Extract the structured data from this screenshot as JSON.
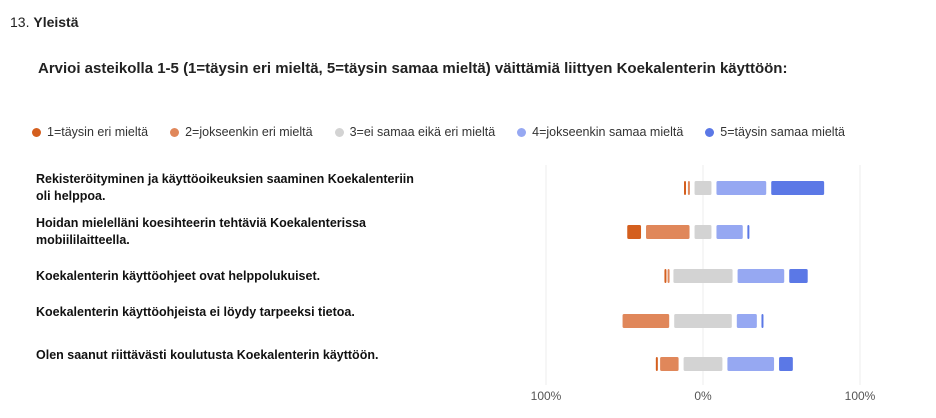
{
  "question": {
    "number": "13.",
    "title": "Yleistä"
  },
  "subtitle": "Arvioi asteikolla 1-5 (1=täysin eri mieltä, 5=täysin samaa mieltä) väittämiä liittyen Koekalenterin käyttöön:",
  "colors": [
    "#d45f1e",
    "#e0875a",
    "#d3d3d3",
    "#96a8f2",
    "#5b78e6"
  ],
  "chart_data": {
    "type": "bar",
    "subtype": "diverging-stacked",
    "legend": [
      "1=täysin eri mieltä",
      "2=jokseenkin eri mieltä",
      "3=ei samaa eikä eri mieltä",
      "4=jokseenkin samaa mieltä",
      "5=täysin samaa mieltä"
    ],
    "legend_position": "top",
    "categories": [
      "Rekisteröityminen ja käyttöoikeuksien saaminen Koekalenteriin oli helppoa.",
      "Hoidan mielelläni koesihteerin tehtäviä Koekalenterissa mobiililaitteella.",
      "Koekalenterin käyttöohjeet ovat helppolukuiset.",
      "Koekalenterin käyttöohjeista ei löydy tarpeeksi tietoa.",
      "Olen saanut riittävästi koulutusta Koekalenterin käyttöön."
    ],
    "series": [
      {
        "name": "1=täysin eri mieltä",
        "values": [
          1,
          12,
          1,
          0,
          1
        ]
      },
      {
        "name": "2=jokseenkin eri mieltä",
        "values": [
          4,
          31,
          3,
          33,
          15
        ]
      },
      {
        "name": "3=ei samaa eikä eri mieltä",
        "values": [
          14,
          14,
          41,
          40,
          28
        ]
      },
      {
        "name": "4=jokseenkin samaa mieltä",
        "values": [
          35,
          20,
          33,
          16,
          33
        ]
      },
      {
        "name": "5=täysin samaa mieltä",
        "values": [
          37,
          4,
          15,
          4,
          12
        ]
      }
    ],
    "xtick_labels": [
      "100%",
      "0%",
      "100%"
    ],
    "xlim": [
      -100,
      100
    ]
  }
}
